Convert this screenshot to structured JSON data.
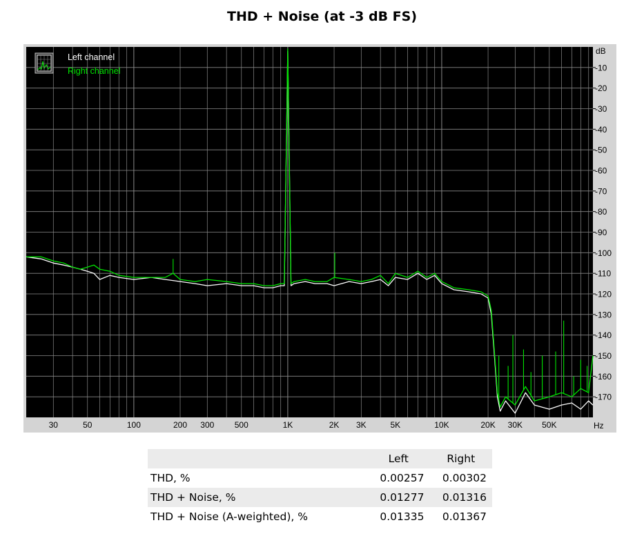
{
  "chart_data": {
    "type": "line",
    "title": "THD + Noise (at -3 dB FS)",
    "x_scale": "log",
    "xlim": [
      20,
      96000
    ],
    "ylim": [
      -180,
      0
    ],
    "x_unit": "Hz",
    "y_unit": "dB",
    "x_ticks": [
      {
        "value": 30,
        "label": "30"
      },
      {
        "value": 50,
        "label": "50"
      },
      {
        "value": 100,
        "label": "100"
      },
      {
        "value": 200,
        "label": "200"
      },
      {
        "value": 300,
        "label": "300"
      },
      {
        "value": 500,
        "label": "500"
      },
      {
        "value": 1000,
        "label": "1K"
      },
      {
        "value": 2000,
        "label": "2K"
      },
      {
        "value": 3000,
        "label": "3K"
      },
      {
        "value": 5000,
        "label": "5K"
      },
      {
        "value": 10000,
        "label": "10K"
      },
      {
        "value": 20000,
        "label": "20K"
      },
      {
        "value": 30000,
        "label": "30K"
      },
      {
        "value": 50000,
        "label": "50K"
      }
    ],
    "y_ticks": [
      {
        "value": -10,
        "label": "-10"
      },
      {
        "value": -20,
        "label": "-20"
      },
      {
        "value": -30,
        "label": "-30"
      },
      {
        "value": -40,
        "label": "-40"
      },
      {
        "value": -50,
        "label": "-50"
      },
      {
        "value": -60,
        "label": "-60"
      },
      {
        "value": -70,
        "label": "-70"
      },
      {
        "value": -80,
        "label": "-80"
      },
      {
        "value": -90,
        "label": "-90"
      },
      {
        "value": -100,
        "label": "-100"
      },
      {
        "value": -110,
        "label": "-110"
      },
      {
        "value": -120,
        "label": "-120"
      },
      {
        "value": -130,
        "label": "-130"
      },
      {
        "value": -140,
        "label": "-140"
      },
      {
        "value": -150,
        "label": "-150"
      },
      {
        "value": -160,
        "label": "-160"
      },
      {
        "value": -170,
        "label": "-170"
      }
    ],
    "grid": true,
    "legend_position": "top-left",
    "background_color": "#000000",
    "series": [
      {
        "name": "Left channel",
        "color": "#ffffff",
        "x": [
          20,
          25,
          30,
          35,
          40,
          45,
          50,
          55,
          60,
          70,
          80,
          100,
          130,
          160,
          200,
          250,
          300,
          400,
          500,
          600,
          700,
          800,
          900,
          950,
          1000,
          1050,
          1100,
          1300,
          1500,
          1800,
          2000,
          2500,
          3000,
          3500,
          4000,
          4500,
          5000,
          6000,
          7000,
          8000,
          9000,
          10000,
          12000,
          15000,
          18000,
          20000,
          21000,
          22000,
          23000,
          24000,
          26000,
          30000,
          35000,
          40000,
          50000,
          60000,
          70000,
          80000,
          90000,
          96000
        ],
        "y": [
          -102,
          -103,
          -105,
          -106,
          -107,
          -108,
          -109,
          -110,
          -113,
          -111,
          -112,
          -113,
          -112,
          -113,
          -114,
          -115,
          -116,
          -115,
          -116,
          -116,
          -117,
          -117,
          -116,
          -116,
          -2,
          -116,
          -115,
          -114,
          -115,
          -115,
          -116,
          -114,
          -115,
          -114,
          -113,
          -116,
          -112,
          -113,
          -110,
          -113,
          -111,
          -115,
          -118,
          -119,
          -120,
          -122,
          -130,
          -150,
          -170,
          -177,
          -172,
          -178,
          -168,
          -174,
          -176,
          -174,
          -173,
          -176,
          -172,
          -174
        ]
      },
      {
        "name": "Right channel",
        "color": "#00e600",
        "x": [
          20,
          25,
          30,
          35,
          40,
          45,
          50,
          55,
          60,
          70,
          80,
          100,
          130,
          160,
          180,
          200,
          250,
          300,
          400,
          500,
          600,
          700,
          800,
          900,
          950,
          1000,
          1050,
          1100,
          1300,
          1500,
          1800,
          2000,
          2500,
          3000,
          3500,
          4000,
          4500,
          5000,
          6000,
          7000,
          8000,
          9000,
          10000,
          12000,
          15000,
          18000,
          20000,
          21000,
          22000,
          23000,
          24000,
          26000,
          30000,
          35000,
          40000,
          50000,
          60000,
          70000,
          80000,
          90000,
          96000
        ],
        "y": [
          -102,
          -102,
          -104,
          -105,
          -107,
          -108,
          -107,
          -106,
          -108,
          -109,
          -111,
          -112,
          -112,
          -112,
          -110,
          -113,
          -114,
          -113,
          -114,
          -115,
          -115,
          -116,
          -116,
          -115,
          -115,
          -1,
          -115,
          -114,
          -113,
          -114,
          -114,
          -112,
          -113,
          -114,
          -113,
          -111,
          -115,
          -110,
          -112,
          -109,
          -112,
          -110,
          -114,
          -117,
          -118,
          -119,
          -121,
          -128,
          -148,
          -168,
          -175,
          -170,
          -174,
          -165,
          -172,
          -170,
          -168,
          -170,
          -166,
          -168,
          -150
        ]
      }
    ],
    "spikes": [
      {
        "series": 1,
        "x": 180,
        "y": -103
      },
      {
        "series": 1,
        "x": 2020,
        "y": -100
      },
      {
        "series": 1,
        "x": 23500,
        "y": -150
      },
      {
        "series": 1,
        "x": 27000,
        "y": -155
      },
      {
        "series": 1,
        "x": 29000,
        "y": -140
      },
      {
        "series": 1,
        "x": 34000,
        "y": -147
      },
      {
        "series": 1,
        "x": 38000,
        "y": -158
      },
      {
        "series": 1,
        "x": 45000,
        "y": -150
      },
      {
        "series": 1,
        "x": 55000,
        "y": -148
      },
      {
        "series": 1,
        "x": 62000,
        "y": -133
      },
      {
        "series": 1,
        "x": 72000,
        "y": -160
      },
      {
        "series": 1,
        "x": 80000,
        "y": -152
      },
      {
        "series": 1,
        "x": 88000,
        "y": -155
      }
    ]
  },
  "table": {
    "headers": [
      "",
      "Left",
      "Right"
    ],
    "rows": [
      {
        "label": "THD, %",
        "left": "0.00257",
        "right": "0.00302"
      },
      {
        "label": "THD + Noise, %",
        "left": "0.01277",
        "right": "0.01316"
      },
      {
        "label": "THD + Noise (A-weighted), %",
        "left": "0.01335",
        "right": "0.01367"
      }
    ]
  }
}
